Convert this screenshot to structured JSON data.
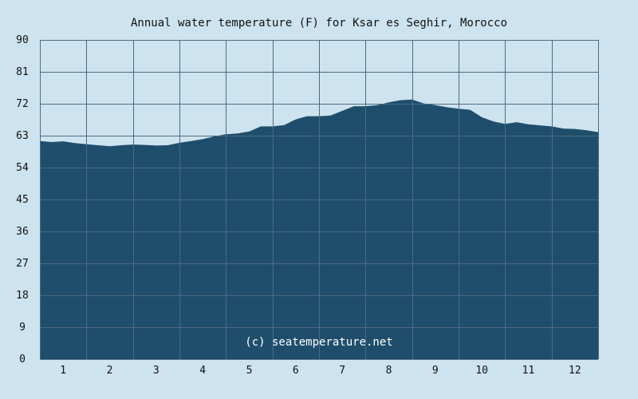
{
  "chart_data": {
    "type": "area",
    "title": "Annual water temperature (F) for Ksar es Seghir, Morocco",
    "xlabel": "",
    "ylabel": "",
    "categories": [
      "1",
      "2",
      "3",
      "4",
      "5",
      "6",
      "7",
      "8",
      "9",
      "10",
      "11",
      "12"
    ],
    "xlim": [
      0.5,
      12.5
    ],
    "ylim": [
      0,
      90
    ],
    "y_ticks": [
      0,
      9,
      18,
      27,
      36,
      45,
      54,
      63,
      72,
      81,
      90
    ],
    "grid": true,
    "series": [
      {
        "x": [
          0.5,
          0.75,
          1.0,
          1.25,
          1.5,
          1.75,
          2.0,
          2.25,
          2.5,
          2.75,
          3.0,
          3.25,
          3.5,
          3.75,
          4.0,
          4.25,
          4.5,
          4.75,
          5.0,
          5.25,
          5.5,
          5.75,
          6.0,
          6.25,
          6.5,
          6.75,
          7.0,
          7.25,
          7.5,
          7.75,
          8.0,
          8.25,
          8.5,
          8.75,
          9.0,
          9.25,
          9.5,
          9.75,
          10.0,
          10.25,
          10.5,
          10.75,
          11.0,
          11.25,
          11.5,
          11.75,
          12.0,
          12.25,
          12.5
        ],
        "values": [
          61.5,
          61.2,
          61.4,
          60.9,
          60.6,
          60.3,
          60.0,
          60.3,
          60.5,
          60.4,
          60.2,
          60.3,
          61.0,
          61.5,
          62.0,
          62.8,
          63.4,
          63.6,
          64.2,
          65.6,
          65.6,
          66.0,
          67.6,
          68.5,
          68.5,
          68.7,
          70.0,
          71.3,
          71.3,
          71.6,
          72.4,
          73.0,
          73.2,
          72.1,
          71.6,
          71.0,
          70.6,
          70.3,
          68.2,
          67.0,
          66.3,
          66.8,
          66.2,
          65.9,
          65.6,
          65.0,
          64.9,
          64.5,
          64.0
        ]
      }
    ],
    "colors": {
      "background": "#cde3ef",
      "plot_background": "#cde3ef",
      "area_fill": "#1f4e6c",
      "grid": "#4f6a80",
      "credit_text": "#ffffff"
    },
    "watermark": "(c) seatemperature.net"
  }
}
